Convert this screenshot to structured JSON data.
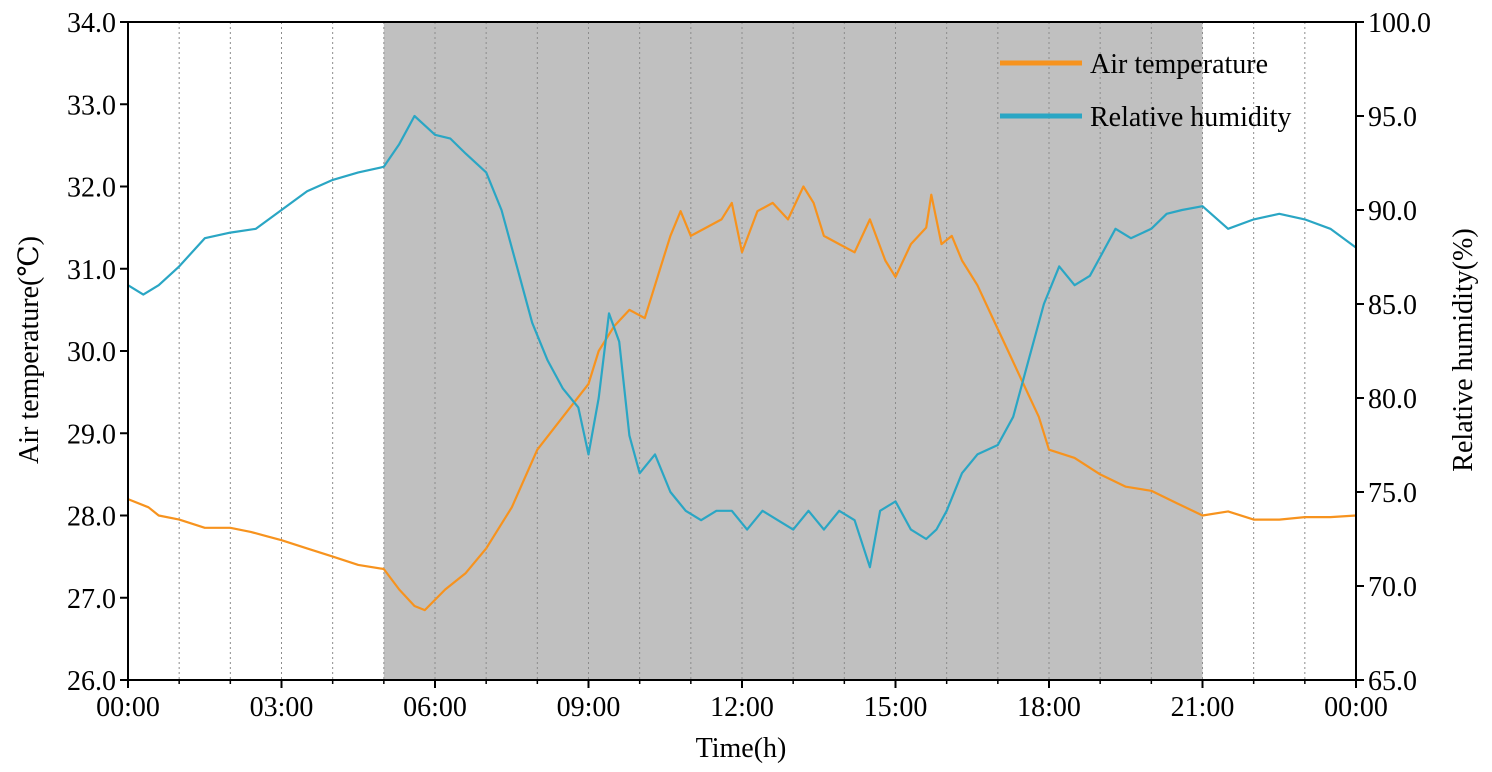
{
  "chart_data": {
    "type": "line",
    "xlabel": "Time(h)",
    "ylabel_left": "Air temperature(℃)",
    "ylabel_right": "Relative humidity(%)",
    "x_unit": "hours",
    "xlim": [
      0,
      24
    ],
    "x_ticks": [
      0,
      3,
      6,
      9,
      12,
      15,
      18,
      21,
      24
    ],
    "x_tick_labels": [
      "00:00",
      "03:00",
      "06:00",
      "09:00",
      "12:00",
      "15:00",
      "18:00",
      "21:00",
      "00:00"
    ],
    "x_gridlines_every_hours": 1,
    "ylim_left": [
      26.0,
      34.0
    ],
    "y_ticks_left": [
      26.0,
      27.0,
      28.0,
      29.0,
      30.0,
      31.0,
      32.0,
      33.0,
      34.0
    ],
    "y_tick_labels_left": [
      "26.0",
      "27.0",
      "28.0",
      "29.0",
      "30.0",
      "31.0",
      "32.0",
      "33.0",
      "34.0"
    ],
    "ylim_right": [
      65.0,
      100.0
    ],
    "y_ticks_right": [
      65.0,
      70.0,
      75.0,
      80.0,
      85.0,
      90.0,
      95.0,
      100.0
    ],
    "y_tick_labels_right": [
      "65.0",
      "70.0",
      "75.0",
      "80.0",
      "85.0",
      "90.0",
      "95.0",
      "100.0"
    ],
    "shaded_interval_hours": [
      5,
      21
    ],
    "shade_color": "#c0c0c0",
    "legend_position": "top-right",
    "series": [
      {
        "name": "Air temperature",
        "axis": "left",
        "color": "#f7931e",
        "x": [
          0.0,
          0.4,
          0.6,
          1.0,
          1.5,
          2.0,
          2.4,
          2.7,
          3.0,
          3.5,
          4.0,
          4.5,
          5.0,
          5.3,
          5.6,
          5.8,
          6.2,
          6.6,
          7.0,
          7.5,
          8.0,
          8.5,
          9.0,
          9.2,
          9.5,
          9.8,
          10.1,
          10.4,
          10.6,
          10.8,
          11.0,
          11.3,
          11.6,
          11.8,
          12.0,
          12.3,
          12.6,
          12.9,
          13.2,
          13.4,
          13.6,
          13.9,
          14.2,
          14.5,
          14.8,
          15.0,
          15.3,
          15.6,
          15.7,
          15.9,
          16.1,
          16.3,
          16.6,
          16.9,
          17.2,
          17.5,
          17.8,
          18.0,
          18.5,
          19.0,
          19.5,
          20.0,
          20.5,
          21.0,
          21.5,
          22.0,
          22.5,
          23.0,
          23.5,
          24.0
        ],
        "y": [
          28.2,
          28.1,
          28.0,
          27.95,
          27.85,
          27.85,
          27.8,
          27.75,
          27.7,
          27.6,
          27.5,
          27.4,
          27.35,
          27.1,
          26.9,
          26.85,
          27.1,
          27.3,
          27.6,
          28.1,
          28.8,
          29.2,
          29.6,
          30.0,
          30.3,
          30.5,
          30.4,
          31.0,
          31.4,
          31.7,
          31.4,
          31.5,
          31.6,
          31.8,
          31.2,
          31.7,
          31.8,
          31.6,
          32.0,
          31.8,
          31.4,
          31.3,
          31.2,
          31.6,
          31.1,
          30.9,
          31.3,
          31.5,
          31.9,
          31.3,
          31.4,
          31.1,
          30.8,
          30.4,
          30.0,
          29.6,
          29.2,
          28.8,
          28.7,
          28.5,
          28.35,
          28.3,
          28.15,
          28.0,
          28.05,
          27.95,
          27.95,
          27.98,
          27.98,
          28.0
        ]
      },
      {
        "name": "Relative humidity",
        "axis": "right",
        "color": "#2aa6c4",
        "x": [
          0.0,
          0.3,
          0.6,
          1.0,
          1.5,
          2.0,
          2.5,
          3.0,
          3.5,
          4.0,
          4.5,
          5.0,
          5.3,
          5.6,
          5.8,
          6.0,
          6.3,
          6.6,
          7.0,
          7.3,
          7.6,
          7.9,
          8.2,
          8.5,
          8.8,
          9.0,
          9.2,
          9.4,
          9.6,
          9.8,
          10.0,
          10.3,
          10.6,
          10.9,
          11.2,
          11.5,
          11.8,
          12.1,
          12.4,
          12.7,
          13.0,
          13.3,
          13.6,
          13.9,
          14.2,
          14.5,
          14.7,
          15.0,
          15.3,
          15.6,
          15.8,
          16.0,
          16.3,
          16.6,
          17.0,
          17.3,
          17.6,
          17.9,
          18.2,
          18.5,
          18.8,
          19.0,
          19.3,
          19.6,
          20.0,
          20.3,
          20.6,
          21.0,
          21.5,
          22.0,
          22.5,
          23.0,
          23.5,
          24.0
        ],
        "y": [
          86.0,
          85.5,
          86.0,
          87.0,
          88.5,
          88.8,
          89.0,
          90.0,
          91.0,
          91.6,
          92.0,
          92.3,
          93.5,
          95.0,
          94.5,
          94.0,
          93.8,
          93.0,
          92.0,
          90.0,
          87.0,
          84.0,
          82.0,
          80.5,
          79.5,
          77.0,
          80.0,
          84.5,
          83.0,
          78.0,
          76.0,
          77.0,
          75.0,
          74.0,
          73.5,
          74.0,
          74.0,
          73.0,
          74.0,
          73.5,
          73.0,
          74.0,
          73.0,
          74.0,
          73.5,
          71.0,
          74.0,
          74.5,
          73.0,
          72.5,
          73.0,
          74.0,
          76.0,
          77.0,
          77.5,
          79.0,
          82.0,
          85.0,
          87.0,
          86.0,
          86.5,
          87.5,
          89.0,
          88.5,
          89.0,
          89.8,
          90.0,
          90.2,
          89.0,
          89.5,
          89.8,
          89.5,
          89.0,
          88.0
        ]
      }
    ]
  }
}
